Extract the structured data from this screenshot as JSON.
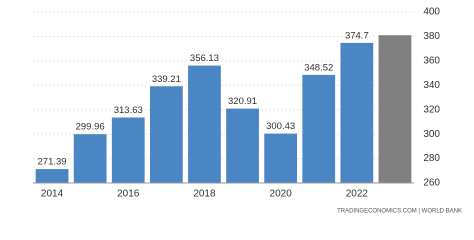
{
  "chart_data": {
    "type": "bar",
    "categories": [
      "2014",
      null,
      "2016",
      null,
      "2018",
      null,
      "2020",
      null,
      "2022",
      null
    ],
    "values": [
      271.39,
      299.96,
      313.63,
      339.21,
      356.13,
      320.91,
      300.43,
      348.52,
      374.7,
      381
    ],
    "value_labels": [
      "271.39",
      "299.96",
      "313.63",
      "339.21",
      "356.13",
      "320.91",
      "300.43",
      "348.52",
      "374.7",
      null
    ],
    "colors": [
      "#4a86c4",
      "#4a86c4",
      "#4a86c4",
      "#4a86c4",
      "#4a86c4",
      "#4a86c4",
      "#4a86c4",
      "#4a86c4",
      "#4a86c4",
      "#808080"
    ],
    "ylim": [
      260,
      400
    ],
    "yticks": [
      260,
      280,
      300,
      320,
      340,
      360,
      380,
      400
    ],
    "grid": true,
    "source": "TRADINGECONOMICS.COM | WORLD BANK"
  }
}
